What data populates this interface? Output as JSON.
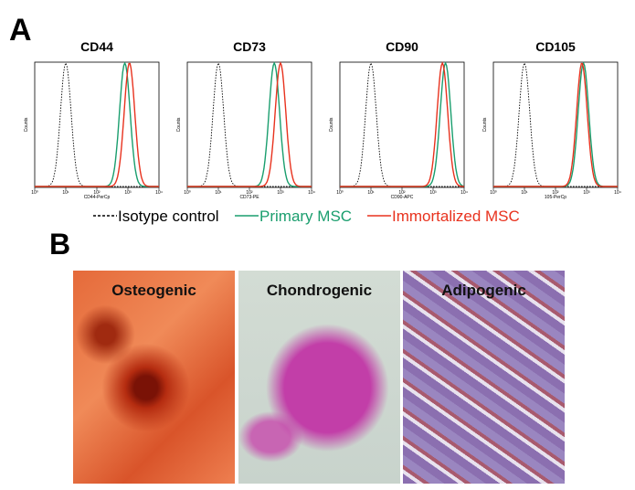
{
  "panel_a": {
    "label": "A",
    "y_axis_label": "Counts",
    "xticks": [
      {
        "value": 0,
        "label": "10⁰"
      },
      {
        "value": 1,
        "label": "10¹"
      },
      {
        "value": 2,
        "label": "10²"
      },
      {
        "value": 3,
        "label": "10³"
      },
      {
        "value": 4,
        "label": "10⁴"
      }
    ],
    "series": [
      {
        "name": "Isotype control",
        "color": "#000000"
      },
      {
        "name": "Primary MSC",
        "color": "#1a9e6e"
      },
      {
        "name": "Immortalized MSC",
        "color": "#e8321e"
      }
    ],
    "plots": [
      {
        "title": "CD44",
        "x_axis_label": "CD44-PerCp",
        "peaks": [
          1.0,
          2.9,
          3.05
        ]
      },
      {
        "title": "CD73",
        "x_axis_label": "CD73-PE",
        "peaks": [
          1.0,
          2.8,
          3.0
        ]
      },
      {
        "title": "CD90",
        "x_axis_label": "CD90-APC",
        "peaks": [
          1.0,
          3.4,
          3.3
        ]
      },
      {
        "title": "CD105",
        "x_axis_label": "105-PerCp",
        "peaks": [
          1.0,
          2.9,
          2.85
        ]
      }
    ]
  },
  "panel_b": {
    "label": "B",
    "images": [
      "Osteogenic",
      "Chondrogenic",
      "Adipogenic"
    ]
  }
}
